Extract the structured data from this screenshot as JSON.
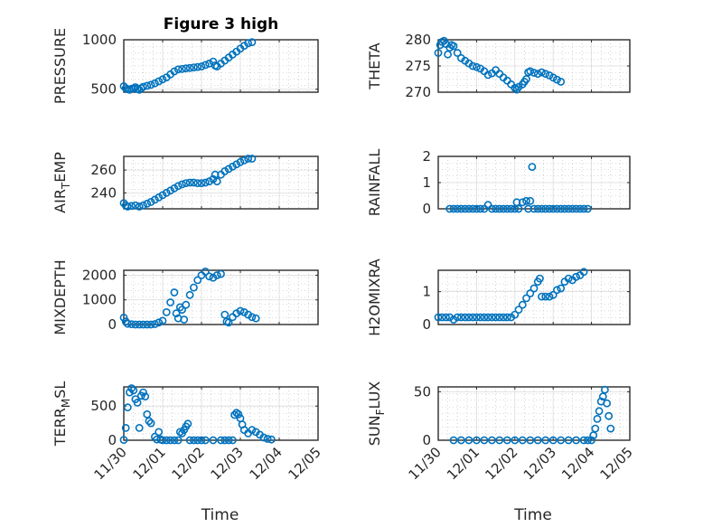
{
  "chart_data": [
    {
      "type": "scatter",
      "title": "Figure 3 high",
      "ylabel": "PRESSURE",
      "ylim": [
        470,
        1000
      ],
      "yticks": [
        500,
        1000
      ],
      "xlim": [
        0,
        5
      ],
      "xticks": [],
      "color": "#0072BD",
      "points": [
        [
          0.0,
          530
        ],
        [
          0.05,
          510
        ],
        [
          0.1,
          500
        ],
        [
          0.15,
          495
        ],
        [
          0.2,
          505
        ],
        [
          0.25,
          510
        ],
        [
          0.3,
          520
        ],
        [
          0.35,
          505
        ],
        [
          0.4,
          495
        ],
        [
          0.45,
          510
        ],
        [
          0.5,
          525
        ],
        [
          0.6,
          535
        ],
        [
          0.7,
          545
        ],
        [
          0.8,
          560
        ],
        [
          0.9,
          580
        ],
        [
          1.0,
          600
        ],
        [
          1.1,
          620
        ],
        [
          1.2,
          650
        ],
        [
          1.3,
          680
        ],
        [
          1.4,
          700
        ],
        [
          1.5,
          705
        ],
        [
          1.6,
          710
        ],
        [
          1.7,
          715
        ],
        [
          1.8,
          720
        ],
        [
          1.9,
          725
        ],
        [
          2.0,
          730
        ],
        [
          2.1,
          745
        ],
        [
          2.2,
          760
        ],
        [
          2.3,
          780
        ],
        [
          2.35,
          740
        ],
        [
          2.4,
          730
        ],
        [
          2.5,
          760
        ],
        [
          2.6,
          790
        ],
        [
          2.7,
          820
        ],
        [
          2.8,
          850
        ],
        [
          2.9,
          880
        ],
        [
          3.0,
          910
        ],
        [
          3.1,
          940
        ],
        [
          3.2,
          965
        ],
        [
          3.3,
          975
        ]
      ]
    },
    {
      "type": "scatter",
      "ylabel": "THETA",
      "ylim": [
        270,
        280
      ],
      "yticks": [
        270,
        275,
        280
      ],
      "xlim": [
        0,
        5
      ],
      "xticks": [],
      "color": "#0072BD",
      "points": [
        [
          0.0,
          277.5
        ],
        [
          0.05,
          279
        ],
        [
          0.1,
          279.6
        ],
        [
          0.15,
          279.8
        ],
        [
          0.2,
          279.2
        ],
        [
          0.25,
          277.2
        ],
        [
          0.3,
          278.5
        ],
        [
          0.35,
          279
        ],
        [
          0.4,
          278.8
        ],
        [
          0.5,
          277.5
        ],
        [
          0.6,
          276.5
        ],
        [
          0.7,
          276
        ],
        [
          0.8,
          275.5
        ],
        [
          0.9,
          275
        ],
        [
          1.0,
          274.8
        ],
        [
          1.1,
          274.5
        ],
        [
          1.2,
          274
        ],
        [
          1.3,
          273.3
        ],
        [
          1.4,
          273.6
        ],
        [
          1.5,
          274.2
        ],
        [
          1.6,
          273.5
        ],
        [
          1.7,
          272.8
        ],
        [
          1.8,
          272.2
        ],
        [
          1.9,
          271.5
        ],
        [
          2.0,
          270.8
        ],
        [
          2.05,
          270.5
        ],
        [
          2.1,
          271
        ],
        [
          2.2,
          271.5
        ],
        [
          2.25,
          272
        ],
        [
          2.3,
          272.5
        ],
        [
          2.35,
          273.8
        ],
        [
          2.4,
          274
        ],
        [
          2.5,
          273.7
        ],
        [
          2.6,
          273.5
        ],
        [
          2.7,
          273.8
        ],
        [
          2.8,
          273.5
        ],
        [
          2.9,
          273.2
        ],
        [
          3.0,
          272.8
        ],
        [
          3.1,
          272.4
        ],
        [
          3.2,
          272
        ]
      ]
    },
    {
      "type": "scatter",
      "ylabel": "AIR",
      "ylabel_sub": "T",
      "ylabel_rest": "EMP",
      "ylim": [
        226,
        272
      ],
      "yticks": [
        240,
        260
      ],
      "xlim": [
        0,
        5
      ],
      "xticks": [],
      "color": "#0072BD",
      "points": [
        [
          0.0,
          231
        ],
        [
          0.05,
          229
        ],
        [
          0.1,
          228
        ],
        [
          0.2,
          228.5
        ],
        [
          0.3,
          229
        ],
        [
          0.4,
          228
        ],
        [
          0.5,
          229
        ],
        [
          0.6,
          230.5
        ],
        [
          0.7,
          232
        ],
        [
          0.8,
          234
        ],
        [
          0.9,
          236
        ],
        [
          1.0,
          238
        ],
        [
          1.1,
          240
        ],
        [
          1.2,
          242
        ],
        [
          1.3,
          244
        ],
        [
          1.4,
          246
        ],
        [
          1.5,
          247.5
        ],
        [
          1.6,
          248.5
        ],
        [
          1.7,
          249
        ],
        [
          1.8,
          249
        ],
        [
          1.9,
          248.5
        ],
        [
          2.0,
          248.5
        ],
        [
          2.1,
          249
        ],
        [
          2.2,
          250
        ],
        [
          2.3,
          252
        ],
        [
          2.35,
          256
        ],
        [
          2.4,
          250
        ],
        [
          2.5,
          256
        ],
        [
          2.6,
          259
        ],
        [
          2.7,
          261
        ],
        [
          2.8,
          263
        ],
        [
          2.9,
          265
        ],
        [
          3.0,
          267
        ],
        [
          3.1,
          268.5
        ],
        [
          3.2,
          270
        ],
        [
          3.3,
          270
        ]
      ]
    },
    {
      "type": "scatter",
      "ylabel": "RAINFALL",
      "ylim": [
        0,
        2
      ],
      "yticks": [
        0,
        1,
        2
      ],
      "xlim": [
        0,
        5
      ],
      "xticks": [],
      "color": "#0072BD",
      "points": [
        [
          0.3,
          0
        ],
        [
          0.4,
          0
        ],
        [
          0.5,
          0
        ],
        [
          0.6,
          0
        ],
        [
          0.7,
          0
        ],
        [
          0.8,
          0
        ],
        [
          0.9,
          0
        ],
        [
          1.0,
          0
        ],
        [
          1.1,
          0
        ],
        [
          1.2,
          0
        ],
        [
          1.3,
          0.15
        ],
        [
          1.4,
          0
        ],
        [
          1.5,
          0
        ],
        [
          1.6,
          0
        ],
        [
          1.7,
          0
        ],
        [
          1.8,
          0
        ],
        [
          1.9,
          0
        ],
        [
          2.0,
          0
        ],
        [
          2.05,
          0.25
        ],
        [
          2.1,
          0
        ],
        [
          2.2,
          0.25
        ],
        [
          2.3,
          0.3
        ],
        [
          2.35,
          0
        ],
        [
          2.4,
          0.3
        ],
        [
          2.45,
          1.6
        ],
        [
          2.5,
          0
        ],
        [
          2.6,
          0
        ],
        [
          2.7,
          0
        ],
        [
          2.8,
          0
        ],
        [
          2.9,
          0
        ],
        [
          3.0,
          0
        ],
        [
          3.1,
          0
        ],
        [
          3.2,
          0
        ],
        [
          3.3,
          0
        ],
        [
          3.4,
          0
        ],
        [
          3.5,
          0
        ],
        [
          3.6,
          0
        ],
        [
          3.7,
          0
        ],
        [
          3.8,
          0
        ],
        [
          3.9,
          0
        ]
      ]
    },
    {
      "type": "scatter",
      "ylabel": "MIXDEPTH",
      "ylim": [
        0,
        2200
      ],
      "yticks": [
        0,
        1000,
        2000
      ],
      "xlim": [
        0,
        5
      ],
      "xticks": [],
      "color": "#0072BD",
      "points": [
        [
          0.0,
          280
        ],
        [
          0.05,
          120
        ],
        [
          0.1,
          30
        ],
        [
          0.2,
          10
        ],
        [
          0.3,
          0
        ],
        [
          0.4,
          0
        ],
        [
          0.5,
          0
        ],
        [
          0.6,
          0
        ],
        [
          0.7,
          0
        ],
        [
          0.8,
          20
        ],
        [
          0.9,
          80
        ],
        [
          1.0,
          150
        ],
        [
          1.1,
          500
        ],
        [
          1.2,
          900
        ],
        [
          1.3,
          1300
        ],
        [
          1.35,
          450
        ],
        [
          1.4,
          250
        ],
        [
          1.45,
          700
        ],
        [
          1.5,
          600
        ],
        [
          1.55,
          200
        ],
        [
          1.6,
          800
        ],
        [
          1.7,
          1200
        ],
        [
          1.8,
          1500
        ],
        [
          1.9,
          1800
        ],
        [
          2.0,
          2000
        ],
        [
          2.1,
          2150
        ],
        [
          2.2,
          1950
        ],
        [
          2.3,
          1900
        ],
        [
          2.4,
          2000
        ],
        [
          2.5,
          2050
        ],
        [
          2.6,
          400
        ],
        [
          2.65,
          120
        ],
        [
          2.7,
          80
        ],
        [
          2.8,
          300
        ],
        [
          2.9,
          450
        ],
        [
          3.0,
          550
        ],
        [
          3.1,
          500
        ],
        [
          3.2,
          400
        ],
        [
          3.3,
          300
        ],
        [
          3.4,
          250
        ]
      ]
    },
    {
      "type": "scatter",
      "ylabel": "H2OMIXRA",
      "ylim": [
        0,
        1.65
      ],
      "yticks": [
        0,
        1
      ],
      "xlim": [
        0,
        5
      ],
      "xticks": [],
      "color": "#0072BD",
      "points": [
        [
          0.0,
          0.22
        ],
        [
          0.1,
          0.22
        ],
        [
          0.2,
          0.22
        ],
        [
          0.3,
          0.22
        ],
        [
          0.4,
          0.15
        ],
        [
          0.5,
          0.22
        ],
        [
          0.6,
          0.22
        ],
        [
          0.7,
          0.22
        ],
        [
          0.8,
          0.22
        ],
        [
          0.9,
          0.22
        ],
        [
          1.0,
          0.22
        ],
        [
          1.1,
          0.22
        ],
        [
          1.2,
          0.22
        ],
        [
          1.3,
          0.22
        ],
        [
          1.4,
          0.22
        ],
        [
          1.5,
          0.22
        ],
        [
          1.6,
          0.22
        ],
        [
          1.7,
          0.22
        ],
        [
          1.8,
          0.22
        ],
        [
          1.9,
          0.22
        ],
        [
          2.0,
          0.3
        ],
        [
          2.1,
          0.45
        ],
        [
          2.2,
          0.6
        ],
        [
          2.3,
          0.8
        ],
        [
          2.4,
          0.95
        ],
        [
          2.5,
          1.1
        ],
        [
          2.6,
          1.3
        ],
        [
          2.65,
          1.4
        ],
        [
          2.7,
          0.85
        ],
        [
          2.8,
          0.85
        ],
        [
          2.9,
          0.85
        ],
        [
          3.0,
          0.9
        ],
        [
          3.1,
          1.05
        ],
        [
          3.2,
          1.1
        ],
        [
          3.3,
          1.3
        ],
        [
          3.4,
          1.4
        ],
        [
          3.5,
          1.35
        ],
        [
          3.6,
          1.45
        ],
        [
          3.7,
          1.5
        ],
        [
          3.8,
          1.6
        ]
      ]
    },
    {
      "type": "scatter",
      "ylabel": "TERR",
      "ylabel_sub": "M",
      "ylabel_rest": "SL",
      "ylim": [
        0,
        780
      ],
      "yticks": [
        0,
        500
      ],
      "xlim": [
        0,
        5
      ],
      "xticks": [
        "11/30",
        "12/01",
        "12/02",
        "12/03",
        "12/04",
        "12/05"
      ],
      "xlabel": "Time",
      "color": "#0072BD",
      "points": [
        [
          0.0,
          5
        ],
        [
          0.05,
          180
        ],
        [
          0.1,
          480
        ],
        [
          0.15,
          700
        ],
        [
          0.2,
          760
        ],
        [
          0.25,
          730
        ],
        [
          0.3,
          600
        ],
        [
          0.35,
          550
        ],
        [
          0.4,
          180
        ],
        [
          0.45,
          650
        ],
        [
          0.5,
          700
        ],
        [
          0.55,
          640
        ],
        [
          0.6,
          380
        ],
        [
          0.65,
          280
        ],
        [
          0.7,
          250
        ],
        [
          0.8,
          50
        ],
        [
          0.85,
          10
        ],
        [
          0.9,
          120
        ],
        [
          0.95,
          10
        ],
        [
          1.0,
          0
        ],
        [
          1.1,
          0
        ],
        [
          1.2,
          0
        ],
        [
          1.3,
          0
        ],
        [
          1.4,
          0
        ],
        [
          1.45,
          120
        ],
        [
          1.5,
          100
        ],
        [
          1.55,
          150
        ],
        [
          1.6,
          200
        ],
        [
          1.65,
          240
        ],
        [
          1.7,
          0
        ],
        [
          1.8,
          0
        ],
        [
          1.9,
          0
        ],
        [
          2.0,
          0
        ],
        [
          2.1,
          0
        ],
        [
          2.3,
          0
        ],
        [
          2.5,
          0
        ],
        [
          2.6,
          0
        ],
        [
          2.7,
          0
        ],
        [
          2.8,
          0
        ],
        [
          2.85,
          370
        ],
        [
          2.9,
          400
        ],
        [
          2.95,
          380
        ],
        [
          3.0,
          320
        ],
        [
          3.05,
          230
        ],
        [
          3.1,
          150
        ],
        [
          3.2,
          100
        ],
        [
          3.3,
          150
        ],
        [
          3.4,
          120
        ],
        [
          3.5,
          80
        ],
        [
          3.6,
          40
        ],
        [
          3.7,
          20
        ],
        [
          3.8,
          10
        ]
      ]
    },
    {
      "type": "scatter",
      "ylabel": "SUN",
      "ylabel_sub": "F",
      "ylabel_rest": "LUX",
      "ylim": [
        0,
        55
      ],
      "yticks": [
        0,
        50
      ],
      "xlim": [
        0,
        5
      ],
      "xticks": [
        "11/30",
        "12/01",
        "12/02",
        "12/03",
        "12/04",
        "12/05"
      ],
      "xlabel": "Time",
      "color": "#0072BD",
      "points": [
        [
          0.4,
          0
        ],
        [
          0.6,
          0
        ],
        [
          0.8,
          0
        ],
        [
          1.0,
          0
        ],
        [
          1.2,
          0
        ],
        [
          1.4,
          0
        ],
        [
          1.6,
          0
        ],
        [
          1.8,
          0
        ],
        [
          2.0,
          0
        ],
        [
          2.2,
          0
        ],
        [
          2.4,
          0
        ],
        [
          2.6,
          0
        ],
        [
          2.8,
          0
        ],
        [
          3.0,
          0
        ],
        [
          3.2,
          0
        ],
        [
          3.4,
          0
        ],
        [
          3.6,
          0
        ],
        [
          3.8,
          0
        ],
        [
          3.9,
          0
        ],
        [
          4.0,
          0
        ],
        [
          4.05,
          5
        ],
        [
          4.1,
          12
        ],
        [
          4.15,
          22
        ],
        [
          4.2,
          30
        ],
        [
          4.25,
          40
        ],
        [
          4.3,
          45
        ],
        [
          4.35,
          52
        ],
        [
          4.4,
          38
        ],
        [
          4.45,
          25
        ],
        [
          4.5,
          12
        ]
      ]
    }
  ]
}
